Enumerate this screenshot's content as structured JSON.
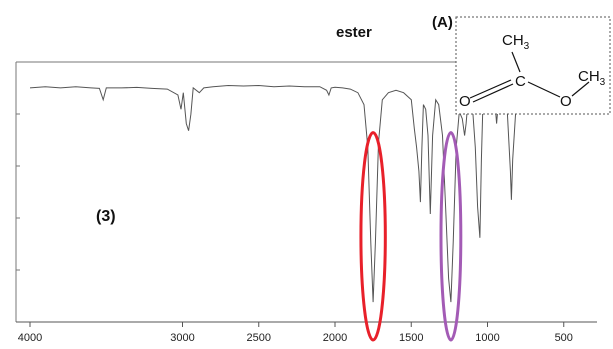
{
  "chart_data": {
    "type": "line",
    "title": "",
    "xlabel": "",
    "ylabel": "",
    "x_axis": {
      "reversed": true,
      "range": [
        4000,
        400
      ],
      "ticks": [
        4000,
        3000,
        2500,
        2000,
        1500,
        1000,
        500
      ],
      "tick_labels": [
        "4000",
        "3000",
        "2500",
        "2000",
        "1500",
        "1000",
        "500"
      ]
    },
    "y_axis": {
      "quantity": "transmittance (relative)",
      "range": [
        0,
        1
      ],
      "tick_labels": []
    },
    "grid": false,
    "series": [
      {
        "name": "",
        "color": "#555555",
        "points": [
          [
            4000,
            0.95
          ],
          [
            3900,
            0.955
          ],
          [
            3800,
            0.95
          ],
          [
            3700,
            0.955
          ],
          [
            3600,
            0.95
          ],
          [
            3545,
            0.948
          ],
          [
            3520,
            0.9
          ],
          [
            3500,
            0.95
          ],
          [
            3400,
            0.95
          ],
          [
            3300,
            0.952
          ],
          [
            3200,
            0.948
          ],
          [
            3100,
            0.945
          ],
          [
            3030,
            0.92
          ],
          [
            3010,
            0.86
          ],
          [
            2995,
            0.93
          ],
          [
            2975,
            0.8
          ],
          [
            2960,
            0.77
          ],
          [
            2945,
            0.84
          ],
          [
            2930,
            0.95
          ],
          [
            2890,
            0.93
          ],
          [
            2860,
            0.95
          ],
          [
            2800,
            0.955
          ],
          [
            2700,
            0.96
          ],
          [
            2600,
            0.958
          ],
          [
            2500,
            0.96
          ],
          [
            2400,
            0.955
          ],
          [
            2300,
            0.958
          ],
          [
            2200,
            0.955
          ],
          [
            2100,
            0.955
          ],
          [
            2055,
            0.94
          ],
          [
            2040,
            0.92
          ],
          [
            2025,
            0.95
          ],
          [
            2000,
            0.953
          ],
          [
            1950,
            0.95
          ],
          [
            1900,
            0.945
          ],
          [
            1850,
            0.93
          ],
          [
            1810,
            0.88
          ],
          [
            1785,
            0.7
          ],
          [
            1765,
            0.3
          ],
          [
            1750,
            0.05
          ],
          [
            1735,
            0.3
          ],
          [
            1715,
            0.72
          ],
          [
            1690,
            0.9
          ],
          [
            1650,
            0.93
          ],
          [
            1600,
            0.94
          ],
          [
            1550,
            0.93
          ],
          [
            1500,
            0.9
          ],
          [
            1480,
            0.78
          ],
          [
            1465,
            0.7
          ],
          [
            1450,
            0.6
          ],
          [
            1440,
            0.47
          ],
          [
            1430,
            0.7
          ],
          [
            1420,
            0.88
          ],
          [
            1405,
            0.86
          ],
          [
            1390,
            0.75
          ],
          [
            1375,
            0.42
          ],
          [
            1360,
            0.75
          ],
          [
            1340,
            0.9
          ],
          [
            1320,
            0.88
          ],
          [
            1295,
            0.75
          ],
          [
            1275,
            0.45
          ],
          [
            1255,
            0.15
          ],
          [
            1240,
            0.05
          ],
          [
            1225,
            0.3
          ],
          [
            1205,
            0.7
          ],
          [
            1185,
            0.85
          ],
          [
            1165,
            0.82
          ],
          [
            1150,
            0.75
          ],
          [
            1140,
            0.8
          ],
          [
            1130,
            0.88
          ],
          [
            1100,
            0.88
          ],
          [
            1080,
            0.7
          ],
          [
            1065,
            0.45
          ],
          [
            1050,
            0.32
          ],
          [
            1040,
            0.65
          ],
          [
            1030,
            0.88
          ],
          [
            1000,
            0.9
          ],
          [
            970,
            0.9
          ],
          [
            950,
            0.88
          ],
          [
            940,
            0.8
          ],
          [
            930,
            0.88
          ],
          [
            900,
            0.9
          ],
          [
            870,
            0.85
          ],
          [
            850,
            0.6
          ],
          [
            843,
            0.48
          ],
          [
            835,
            0.65
          ],
          [
            815,
            0.85
          ]
        ]
      }
    ],
    "annotations": {
      "ellipses": [
        {
          "center_x": 1750,
          "width_cm1": 160,
          "y_range": [
            0.0,
            0.72
          ],
          "color": "#e8202a"
        },
        {
          "center_x": 1240,
          "width_cm1": 130,
          "y_range": [
            0.0,
            0.72
          ],
          "color": "#a35bb5"
        }
      ]
    }
  },
  "labels": {
    "ester": "ester",
    "panel_number": "(3)",
    "structure_label": "(A)"
  },
  "structure": {
    "top_group": "CH",
    "top_group_sub": "3",
    "carbon": "C",
    "carbonyl_oxygen": "O",
    "ester_oxygen": "O",
    "right_group": "CH",
    "right_group_sub": "3"
  },
  "colors": {
    "spectrum": "#555555",
    "frame": "#777777",
    "red_ellipse": "#e8202a",
    "purple_ellipse": "#a35bb5"
  }
}
